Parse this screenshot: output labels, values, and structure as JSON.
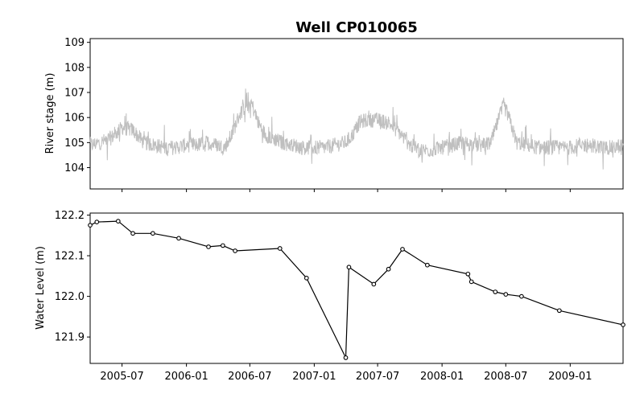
{
  "chart_data": [
    {
      "type": "line",
      "title": "Well CP010065",
      "xlabel": "",
      "ylabel": "River stage (m)",
      "ylim": [
        103.15,
        109.15
      ],
      "yticks": [
        "104",
        "105",
        "106",
        "107",
        "108",
        "109"
      ],
      "xlim": [
        "2005-04-01",
        "2009-06-01"
      ],
      "xticks_labels_shown": false,
      "grid": false,
      "series": [
        {
          "color": "#bfbfbf",
          "note": "noisy daily river stage; anchor points of underlying trend",
          "x": [
            "2005-04-01",
            "2005-05-01",
            "2005-06-01",
            "2005-07-01",
            "2005-08-01",
            "2005-09-01",
            "2005-10-01",
            "2005-11-01",
            "2005-12-01",
            "2006-01-01",
            "2006-02-01",
            "2006-03-01",
            "2006-04-01",
            "2006-04-20",
            "2006-05-10",
            "2006-06-01",
            "2006-06-20",
            "2006-07-05",
            "2006-07-25",
            "2006-08-15",
            "2006-09-01",
            "2006-10-01",
            "2006-11-01",
            "2006-12-01",
            "2007-01-01",
            "2007-02-01",
            "2007-03-01",
            "2007-04-01",
            "2007-04-20",
            "2007-05-10",
            "2007-06-01",
            "2007-07-01",
            "2007-08-01",
            "2007-09-01",
            "2007-10-01",
            "2007-11-01",
            "2007-12-01",
            "2008-01-01",
            "2008-02-01",
            "2008-03-01",
            "2008-04-01",
            "2008-05-01",
            "2008-05-20",
            "2008-06-10",
            "2008-06-25",
            "2008-07-10",
            "2008-08-01",
            "2008-09-01",
            "2008-10-01",
            "2008-11-01",
            "2008-12-01",
            "2009-01-01",
            "2009-02-01",
            "2009-03-01",
            "2009-04-01",
            "2009-05-01",
            "2009-06-01"
          ],
          "values": [
            104.9,
            105.0,
            105.2,
            105.6,
            105.5,
            105.0,
            104.9,
            104.8,
            104.8,
            104.9,
            104.9,
            105.0,
            104.9,
            104.8,
            105.3,
            106.1,
            106.5,
            106.6,
            105.8,
            105.3,
            105.2,
            105.0,
            104.9,
            104.8,
            104.8,
            104.8,
            104.9,
            105.0,
            105.3,
            105.8,
            105.9,
            105.9,
            105.8,
            105.4,
            104.9,
            104.7,
            104.7,
            104.8,
            104.9,
            105.0,
            104.9,
            104.9,
            105.0,
            105.9,
            106.5,
            106.0,
            105.0,
            104.9,
            104.8,
            104.8,
            104.8,
            104.8,
            104.9,
            104.9,
            104.8,
            104.8,
            104.9
          ]
        }
      ]
    },
    {
      "type": "line",
      "title": "",
      "xlabel": "",
      "ylabel": "Water Level (m)",
      "ylim": [
        121.835,
        122.205
      ],
      "yticks": [
        "121.9",
        "122.0",
        "122.1",
        "122.2"
      ],
      "xlim": [
        "2005-04-01",
        "2009-06-01"
      ],
      "xticks": [
        "2005-07",
        "2006-01",
        "2006-07",
        "2007-01",
        "2007-07",
        "2008-01",
        "2008-07",
        "2009-01"
      ],
      "grid": false,
      "series": [
        {
          "color": "#000000",
          "marker": "circle",
          "x": [
            "2005-04-01",
            "2005-04-20",
            "2005-06-20",
            "2005-08-01",
            "2005-09-27",
            "2005-12-10",
            "2006-03-05",
            "2006-04-15",
            "2006-05-20",
            "2006-09-25",
            "2006-12-10",
            "2007-04-01",
            "2007-04-10",
            "2007-06-20",
            "2007-08-01",
            "2007-09-10",
            "2007-11-20",
            "2008-03-15",
            "2008-03-25",
            "2008-06-01",
            "2008-07-01",
            "2008-08-15",
            "2008-12-01",
            "2009-06-01"
          ],
          "values": [
            122.175,
            122.183,
            122.185,
            122.155,
            122.155,
            122.143,
            122.122,
            122.125,
            122.112,
            122.118,
            122.045,
            121.849,
            122.072,
            122.03,
            122.067,
            122.116,
            122.077,
            122.055,
            122.036,
            122.011,
            122.005,
            122.0,
            121.965,
            121.93
          ]
        }
      ]
    }
  ]
}
